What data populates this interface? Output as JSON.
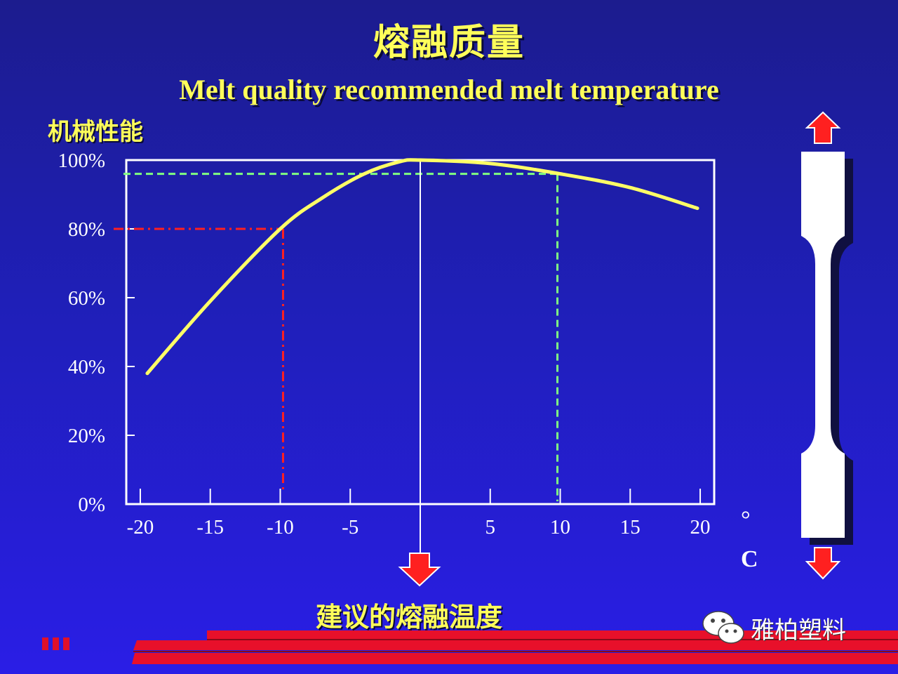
{
  "title_cn": "熔融质量",
  "title_en": "Melt quality recommended melt temperature",
  "ylabel": "机械性能",
  "xlabel": "建议的熔融温度",
  "unit_deg": "°",
  "unit_c": "C",
  "watermark": "雅柏塑料",
  "colors": {
    "curve": "#ffff66",
    "red_guide": "#ff2020",
    "green_guide": "#80ff80",
    "axis": "#ffffff",
    "arrow": "#ff2020"
  },
  "chart_data": {
    "type": "line",
    "title": "熔融质量",
    "subtitle": "Melt quality recommended melt temperature",
    "xlabel": "建议的熔融温度",
    "ylabel": "机械性能",
    "x_ticks": [
      "-20",
      "-15",
      "-10",
      "-5",
      "5",
      "10",
      "15",
      "20"
    ],
    "x_tick_values": [
      -20,
      -15,
      -10,
      -5,
      5,
      10,
      15,
      20
    ],
    "y_ticks": [
      "0%",
      "20%",
      "40%",
      "60%",
      "80%",
      "100%"
    ],
    "y_tick_values": [
      0,
      20,
      40,
      60,
      80,
      100
    ],
    "xlim": [
      -21,
      21
    ],
    "ylim": [
      0,
      100
    ],
    "series": [
      {
        "x": [
          -19.5,
          -15,
          -10,
          -7,
          -4,
          -1.5,
          0,
          5,
          10,
          15,
          19.8
        ],
        "y": [
          38,
          59,
          80,
          89,
          96,
          99.5,
          100,
          99,
          96,
          92,
          86
        ]
      }
    ],
    "reference_lines": [
      {
        "style": "red-dashdot",
        "x": -9.8,
        "y": 80
      },
      {
        "style": "green-dashed",
        "x": 9.8,
        "y": 96
      },
      {
        "style": "white-solid",
        "x": 0
      }
    ]
  }
}
